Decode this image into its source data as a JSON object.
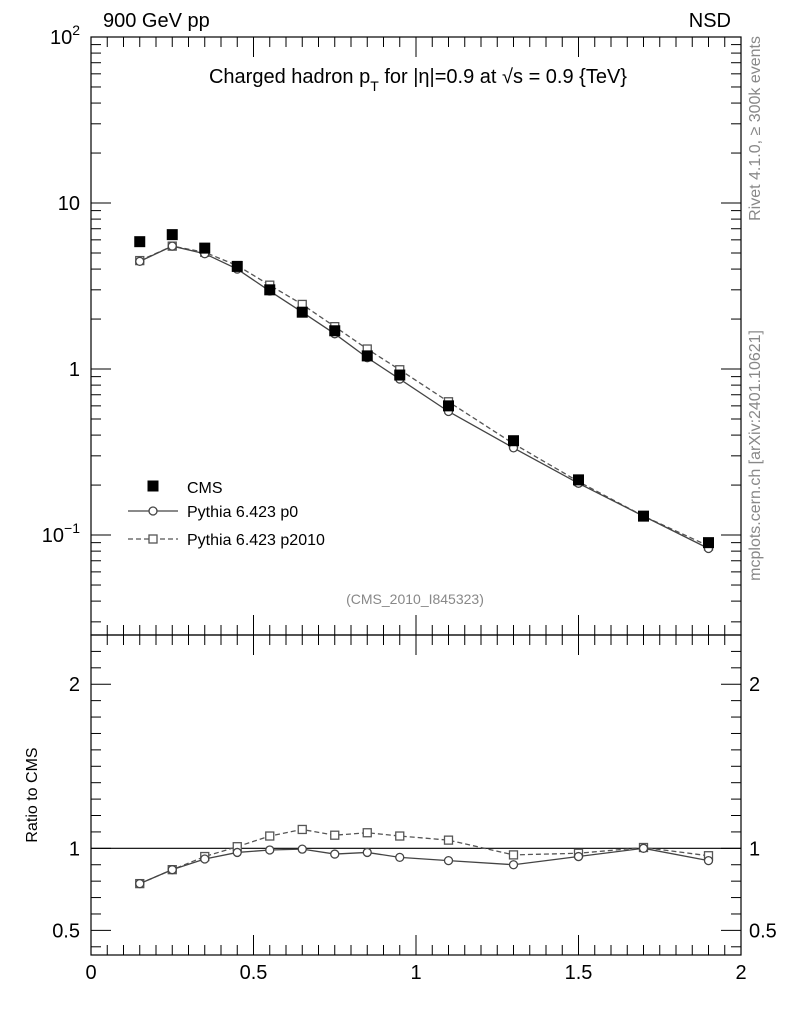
{
  "header": {
    "left": "900 GeV pp",
    "right": "NSD"
  },
  "side_labels": {
    "upper": "Rivet 4.1.0, ≥ 300k events",
    "lower": "mcplots.cern.ch [arXiv:2401.10621]"
  },
  "analysis_tag": "(CMS_2010_I845323)",
  "colors": {
    "data": "#000000",
    "p0": "#444444",
    "p2010": "#555555",
    "tag": "#888888",
    "side": "#888888"
  },
  "chart_data": [
    {
      "panel": "main",
      "type": "scatter",
      "title_parts": {
        "prefix": "Charged hadron p",
        "sub": "T",
        "mid": " for |η|=0.9 at ",
        "sqrt": "√s",
        "suffix": " = 0.9 {TeV}"
      },
      "yscale": "log",
      "ylim": [
        0.025,
        100
      ],
      "xlim": [
        0,
        2
      ],
      "y_tick_labels": [
        {
          "value": 100,
          "base": "10",
          "exp": "2"
        },
        {
          "value": 10,
          "base": "10",
          "exp": ""
        },
        {
          "value": 1,
          "base": "1",
          "exp": ""
        },
        {
          "value": 0.1,
          "base": "10",
          "exp": "−1"
        }
      ],
      "legend_position": "bottom-left",
      "x": [
        0.15,
        0.25,
        0.35,
        0.45,
        0.55,
        0.65,
        0.75,
        0.85,
        0.95,
        1.1,
        1.3,
        1.5,
        1.7,
        1.9
      ],
      "series": [
        {
          "name": "CMS",
          "style": "filled-square",
          "values": [
            5.85,
            6.45,
            5.35,
            4.15,
            3.0,
            2.2,
            1.7,
            1.2,
            0.92,
            0.6,
            0.37,
            0.215,
            0.13,
            0.09
          ]
        },
        {
          "name": "Pythia 6.423 p0",
          "style": "solid-circle",
          "values": [
            4.45,
            5.5,
            4.95,
            4.0,
            2.95,
            2.2,
            1.63,
            1.17,
            0.87,
            0.555,
            0.335,
            0.205,
            0.13,
            0.083
          ]
        },
        {
          "name": "Pythia 6.423 p2010",
          "style": "dashed-square",
          "values": [
            4.5,
            5.5,
            5.05,
            4.2,
            3.2,
            2.45,
            1.8,
            1.32,
            0.99,
            0.635,
            0.355,
            0.21,
            0.13,
            0.086
          ]
        }
      ]
    },
    {
      "panel": "ratio",
      "type": "line",
      "ylabel": "Ratio to CMS",
      "ylim": [
        0.35,
        2.3
      ],
      "xlim": [
        0,
        2
      ],
      "y_tick_labels": [
        "2",
        "1",
        "0.5"
      ],
      "y_tick_values": [
        2,
        1,
        0.5
      ],
      "x_tick_labels": [
        "0",
        "0.5",
        "1",
        "1.5",
        "2"
      ],
      "x_tick_values": [
        0,
        0.5,
        1,
        1.5,
        2
      ],
      "reference_line": 1,
      "x": [
        0.15,
        0.25,
        0.35,
        0.45,
        0.55,
        0.65,
        0.75,
        0.85,
        0.95,
        1.1,
        1.3,
        1.5,
        1.7,
        1.9
      ],
      "series": [
        {
          "name": "Pythia 6.423 p0",
          "style": "solid-circle",
          "values": [
            0.785,
            0.87,
            0.935,
            0.975,
            0.99,
            0.995,
            0.965,
            0.975,
            0.945,
            0.925,
            0.9,
            0.95,
            1.0,
            0.925
          ]
        },
        {
          "name": "Pythia 6.423 p2010",
          "style": "dashed-square",
          "values": [
            0.785,
            0.87,
            0.95,
            1.01,
            1.075,
            1.115,
            1.08,
            1.095,
            1.075,
            1.05,
            0.96,
            0.97,
            1.005,
            0.955
          ]
        }
      ]
    }
  ]
}
